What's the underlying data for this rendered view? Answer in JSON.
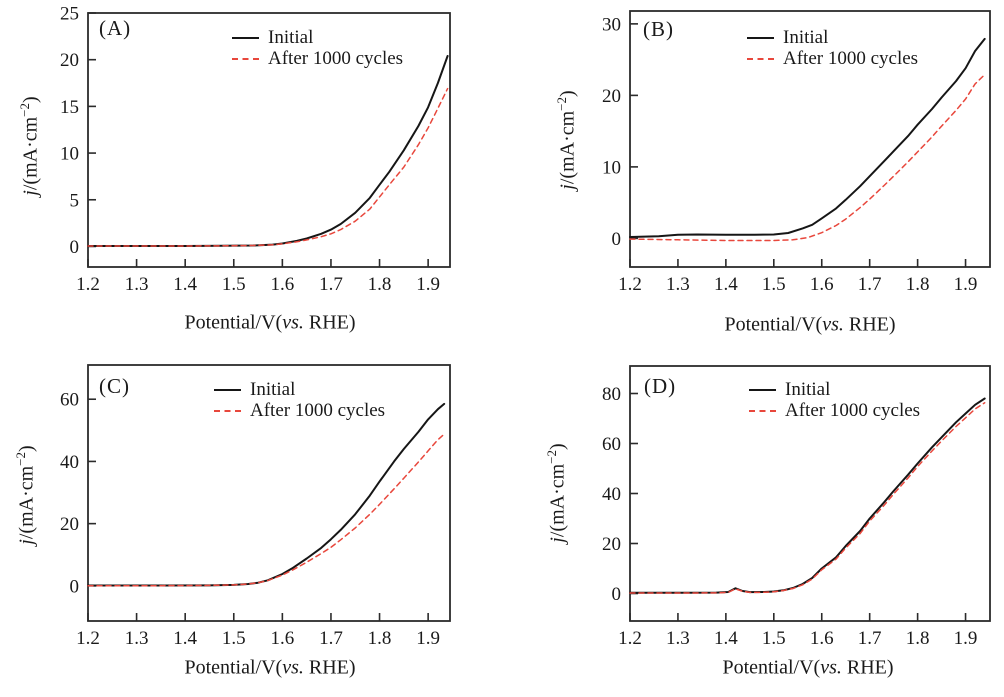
{
  "figure": {
    "background": "#ffffff",
    "curve_black": "#161616",
    "curve_red": "#e8473c",
    "frame_color": "#2b2b2b"
  },
  "chart_data": [
    {
      "type": "line",
      "panel_label": "(A)",
      "xlabel": "Potential/V(vs. RHE)",
      "xlabel_pre": "Potential/V(",
      "xlabel_italic": "vs.",
      "xlabel_post": " RHE)",
      "ylabel": "j/(mA·cm−2)",
      "ylabel_italic": "j",
      "ylabel_mid": "/(mA·cm",
      "ylabel_sup": "−2",
      "ylabel_post": ")",
      "x_tick_labels": [
        "1.2",
        "1.3",
        "1.4",
        "1.5",
        "1.6",
        "1.7",
        "1.8",
        "1.9"
      ],
      "y_tick_labels": [
        "0",
        "5",
        "10",
        "15",
        "20",
        "25"
      ],
      "x_range": [
        1.2,
        1.945
      ],
      "y_range": [
        -2.2,
        25
      ],
      "grid": false,
      "legend_position": "top-center",
      "series": [
        {
          "name": "Initial",
          "color": "#161616",
          "style": "solid",
          "points": [
            [
              1.2,
              0.05
            ],
            [
              1.3,
              0.05
            ],
            [
              1.4,
              0.05
            ],
            [
              1.48,
              0.07
            ],
            [
              1.54,
              0.1
            ],
            [
              1.58,
              0.2
            ],
            [
              1.6,
              0.32
            ],
            [
              1.63,
              0.6
            ],
            [
              1.65,
              0.85
            ],
            [
              1.68,
              1.35
            ],
            [
              1.7,
              1.8
            ],
            [
              1.72,
              2.4
            ],
            [
              1.75,
              3.6
            ],
            [
              1.78,
              5.2
            ],
            [
              1.8,
              6.6
            ],
            [
              1.82,
              8.0
            ],
            [
              1.85,
              10.3
            ],
            [
              1.88,
              12.9
            ],
            [
              1.9,
              14.9
            ],
            [
              1.92,
              17.5
            ],
            [
              1.94,
              20.4
            ]
          ]
        },
        {
          "name": "After 1000 cycles",
          "color": "#e8473c",
          "style": "dashed",
          "points": [
            [
              1.2,
              0.05
            ],
            [
              1.3,
              0.05
            ],
            [
              1.4,
              0.05
            ],
            [
              1.48,
              0.07
            ],
            [
              1.54,
              0.1
            ],
            [
              1.58,
              0.18
            ],
            [
              1.6,
              0.28
            ],
            [
              1.63,
              0.5
            ],
            [
              1.65,
              0.7
            ],
            [
              1.68,
              1.05
            ],
            [
              1.7,
              1.35
            ],
            [
              1.72,
              1.8
            ],
            [
              1.75,
              2.7
            ],
            [
              1.78,
              4.0
            ],
            [
              1.8,
              5.3
            ],
            [
              1.82,
              6.6
            ],
            [
              1.85,
              8.5
            ],
            [
              1.88,
              10.9
            ],
            [
              1.9,
              12.7
            ],
            [
              1.92,
              14.8
            ],
            [
              1.94,
              16.9
            ]
          ]
        }
      ]
    },
    {
      "type": "line",
      "panel_label": "(B)",
      "xlabel": "Potential/V(vs. RHE)",
      "xlabel_pre": "Potential/V(",
      "xlabel_italic": "vs.",
      "xlabel_post": " RHE)",
      "ylabel": "j/(mA·cm−2)",
      "ylabel_italic": "j",
      "ylabel_mid": "/(mA·cm",
      "ylabel_sup": "−2",
      "ylabel_post": ")",
      "x_tick_labels": [
        "1.2",
        "1.3",
        "1.4",
        "1.5",
        "1.6",
        "1.7",
        "1.8",
        "1.9"
      ],
      "y_tick_labels": [
        "0",
        "10",
        "20",
        "30"
      ],
      "x_range": [
        1.2,
        1.951
      ],
      "y_range": [
        -4.0,
        31.8
      ],
      "grid": false,
      "legend_position": "top-center",
      "series": [
        {
          "name": "Initial",
          "color": "#161616",
          "style": "solid",
          "points": [
            [
              1.2,
              0.2
            ],
            [
              1.26,
              0.3
            ],
            [
              1.3,
              0.5
            ],
            [
              1.34,
              0.55
            ],
            [
              1.4,
              0.5
            ],
            [
              1.46,
              0.5
            ],
            [
              1.5,
              0.55
            ],
            [
              1.53,
              0.75
            ],
            [
              1.56,
              1.4
            ],
            [
              1.58,
              1.9
            ],
            [
              1.6,
              2.8
            ],
            [
              1.63,
              4.2
            ],
            [
              1.65,
              5.4
            ],
            [
              1.68,
              7.3
            ],
            [
              1.7,
              8.7
            ],
            [
              1.73,
              10.8
            ],
            [
              1.75,
              12.2
            ],
            [
              1.78,
              14.3
            ],
            [
              1.8,
              15.9
            ],
            [
              1.83,
              18.1
            ],
            [
              1.85,
              19.7
            ],
            [
              1.88,
              22.0
            ],
            [
              1.9,
              23.8
            ],
            [
              1.92,
              26.2
            ],
            [
              1.94,
              27.9
            ]
          ]
        },
        {
          "name": "After 1000 cycles",
          "color": "#e8473c",
          "style": "dashed",
          "points": [
            [
              1.2,
              -0.1
            ],
            [
              1.3,
              -0.2
            ],
            [
              1.4,
              -0.3
            ],
            [
              1.5,
              -0.3
            ],
            [
              1.54,
              -0.2
            ],
            [
              1.57,
              0.1
            ],
            [
              1.6,
              0.8
            ],
            [
              1.63,
              1.8
            ],
            [
              1.65,
              2.7
            ],
            [
              1.68,
              4.3
            ],
            [
              1.7,
              5.5
            ],
            [
              1.73,
              7.4
            ],
            [
              1.75,
              8.7
            ],
            [
              1.78,
              10.7
            ],
            [
              1.8,
              12.1
            ],
            [
              1.83,
              14.2
            ],
            [
              1.85,
              15.7
            ],
            [
              1.88,
              17.9
            ],
            [
              1.9,
              19.5
            ],
            [
              1.92,
              21.6
            ],
            [
              1.94,
              22.9
            ]
          ]
        }
      ]
    },
    {
      "type": "line",
      "panel_label": "(C)",
      "xlabel": "Potential/V(vs. RHE)",
      "xlabel_pre": "Potential/V(",
      "xlabel_italic": "vs.",
      "xlabel_post": " RHE)",
      "ylabel": "j/(mA·cm−2)",
      "ylabel_italic": "j",
      "ylabel_mid": "/(mA·cm",
      "ylabel_sup": "−2",
      "ylabel_post": ")",
      "x_tick_labels": [
        "1.2",
        "1.3",
        "1.4",
        "1.5",
        "1.6",
        "1.7",
        "1.8",
        "1.9"
      ],
      "y_tick_labels": [
        "0",
        "20",
        "40",
        "60"
      ],
      "x_range": [
        1.2,
        1.945
      ],
      "y_range": [
        -11.3,
        71.0
      ],
      "grid": false,
      "legend_position": "top-center",
      "series": [
        {
          "name": "Initial",
          "color": "#161616",
          "style": "solid",
          "points": [
            [
              1.2,
              0.1
            ],
            [
              1.35,
              0.1
            ],
            [
              1.45,
              0.15
            ],
            [
              1.5,
              0.3
            ],
            [
              1.53,
              0.6
            ],
            [
              1.55,
              1.0
            ],
            [
              1.57,
              1.8
            ],
            [
              1.6,
              3.8
            ],
            [
              1.62,
              5.6
            ],
            [
              1.65,
              8.8
            ],
            [
              1.68,
              12.2
            ],
            [
              1.7,
              15.0
            ],
            [
              1.72,
              18.0
            ],
            [
              1.75,
              23.0
            ],
            [
              1.78,
              29.0
            ],
            [
              1.8,
              33.5
            ],
            [
              1.83,
              40.0
            ],
            [
              1.85,
              44.0
            ],
            [
              1.88,
              49.5
            ],
            [
              1.9,
              53.5
            ],
            [
              1.92,
              56.8
            ],
            [
              1.933,
              58.5
            ]
          ]
        },
        {
          "name": "After 1000 cycles",
          "color": "#e8473c",
          "style": "dashed",
          "points": [
            [
              1.2,
              0.05
            ],
            [
              1.35,
              0.05
            ],
            [
              1.44,
              0.1
            ],
            [
              1.5,
              0.3
            ],
            [
              1.53,
              0.6
            ],
            [
              1.55,
              1.0
            ],
            [
              1.57,
              1.7
            ],
            [
              1.6,
              3.5
            ],
            [
              1.62,
              5.0
            ],
            [
              1.65,
              7.6
            ],
            [
              1.68,
              10.4
            ],
            [
              1.7,
              12.4
            ],
            [
              1.72,
              14.8
            ],
            [
              1.75,
              18.6
            ],
            [
              1.78,
              23.0
            ],
            [
              1.8,
              26.2
            ],
            [
              1.83,
              31.2
            ],
            [
              1.85,
              34.6
            ],
            [
              1.88,
              39.8
            ],
            [
              1.9,
              43.4
            ],
            [
              1.92,
              47.0
            ],
            [
              1.933,
              48.8
            ]
          ]
        }
      ]
    },
    {
      "type": "line",
      "panel_label": "(D)",
      "xlabel": "Potential/V(vs. RHE)",
      "xlabel_pre": "Potential/V(",
      "xlabel_italic": "vs.",
      "xlabel_post": " RHE)",
      "ylabel": "j/(mA·cm−2)",
      "ylabel_italic": "j",
      "ylabel_mid": "/(mA·cm",
      "ylabel_sup": "−2",
      "ylabel_post": ")",
      "x_tick_labels": [
        "1.2",
        "1.3",
        "1.4",
        "1.5",
        "1.6",
        "1.7",
        "1.8",
        "1.9"
      ],
      "y_tick_labels": [
        "0",
        "20",
        "40",
        "60",
        "80"
      ],
      "x_range": [
        1.2,
        1.951
      ],
      "y_range": [
        -11.0,
        91.0
      ],
      "grid": false,
      "legend_position": "top-center",
      "series": [
        {
          "name": "Initial",
          "color": "#161616",
          "style": "solid",
          "points": [
            [
              1.2,
              0.3
            ],
            [
              1.3,
              0.3
            ],
            [
              1.38,
              0.35
            ],
            [
              1.405,
              0.6
            ],
            [
              1.42,
              2.1
            ],
            [
              1.435,
              1.0
            ],
            [
              1.45,
              0.55
            ],
            [
              1.48,
              0.6
            ],
            [
              1.5,
              0.8
            ],
            [
              1.52,
              1.3
            ],
            [
              1.54,
              2.2
            ],
            [
              1.56,
              3.8
            ],
            [
              1.58,
              6.2
            ],
            [
              1.6,
              10.0
            ],
            [
              1.63,
              14.5
            ],
            [
              1.65,
              19.0
            ],
            [
              1.68,
              25.0
            ],
            [
              1.7,
              30.0
            ],
            [
              1.73,
              36.5
            ],
            [
              1.75,
              41.0
            ],
            [
              1.78,
              47.5
            ],
            [
              1.8,
              52.0
            ],
            [
              1.83,
              58.5
            ],
            [
              1.85,
              62.5
            ],
            [
              1.88,
              68.5
            ],
            [
              1.9,
              72.0
            ],
            [
              1.92,
              75.5
            ],
            [
              1.94,
              78.0
            ]
          ]
        },
        {
          "name": "After 1000 cycles",
          "color": "#e8473c",
          "style": "dashed",
          "points": [
            [
              1.2,
              0.2
            ],
            [
              1.3,
              0.2
            ],
            [
              1.38,
              0.25
            ],
            [
              1.405,
              0.5
            ],
            [
              1.42,
              1.9
            ],
            [
              1.435,
              0.9
            ],
            [
              1.45,
              0.45
            ],
            [
              1.48,
              0.5
            ],
            [
              1.5,
              0.7
            ],
            [
              1.52,
              1.2
            ],
            [
              1.54,
              2.0
            ],
            [
              1.56,
              3.5
            ],
            [
              1.58,
              5.8
            ],
            [
              1.6,
              9.5
            ],
            [
              1.63,
              13.8
            ],
            [
              1.65,
              18.2
            ],
            [
              1.68,
              24.0
            ],
            [
              1.7,
              29.0
            ],
            [
              1.73,
              35.3
            ],
            [
              1.75,
              39.8
            ],
            [
              1.78,
              46.2
            ],
            [
              1.8,
              50.8
            ],
            [
              1.83,
              57.0
            ],
            [
              1.85,
              61.0
            ],
            [
              1.88,
              66.8
            ],
            [
              1.9,
              70.3
            ],
            [
              1.92,
              73.8
            ],
            [
              1.94,
              76.3
            ]
          ]
        }
      ]
    }
  ]
}
